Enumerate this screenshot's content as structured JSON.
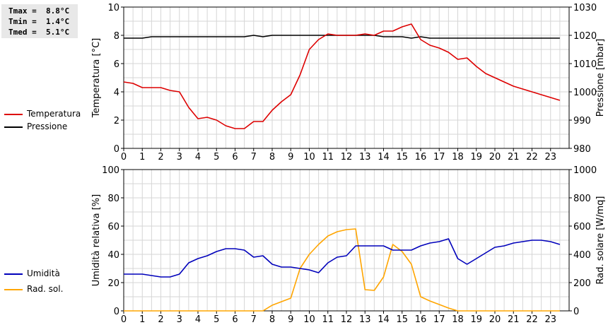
{
  "stats": {
    "tmax": "Tmax =  8.8°C",
    "tmin": "Tmin =  1.4°C",
    "tmed": "Tmed =  5.1°C"
  },
  "chart_data": [
    {
      "type": "line",
      "x": [
        0,
        0.5,
        1,
        1.5,
        2,
        2.5,
        3,
        3.5,
        4,
        4.5,
        5,
        5.5,
        6,
        6.5,
        7,
        7.5,
        8,
        8.5,
        9,
        9.5,
        10,
        10.5,
        11,
        11.5,
        12,
        12.5,
        13,
        13.5,
        14,
        14.5,
        15,
        15.5,
        16,
        16.5,
        17,
        17.5,
        18,
        18.5,
        19,
        19.5,
        20,
        20.5,
        21,
        21.5,
        22,
        22.5,
        23,
        23.5
      ],
      "xlim": [
        0,
        24
      ],
      "xticks": [
        "0",
        "1",
        "2",
        "3",
        "4",
        "5",
        "6",
        "7",
        "8",
        "9",
        "10",
        "11",
        "12",
        "13",
        "14",
        "15",
        "16",
        "17",
        "18",
        "19",
        "20",
        "21",
        "22",
        "23"
      ],
      "ylabel": "Temperatura [°C]",
      "ylim": [
        0,
        10
      ],
      "yticks": [
        "0",
        "2",
        "4",
        "6",
        "8",
        "10"
      ],
      "y2label": "Pressione [mbar]",
      "y2lim": [
        980,
        1030
      ],
      "y2ticks": [
        "980",
        "990",
        "1000",
        "1010",
        "1020",
        "1030"
      ],
      "grid": true,
      "legend_position": "left",
      "series": [
        {
          "name": "Temperatura",
          "color": "#dd0000",
          "axis": "left",
          "values": [
            4.7,
            4.6,
            4.3,
            4.3,
            4.3,
            4.1,
            4.0,
            2.9,
            2.1,
            2.2,
            2.0,
            1.6,
            1.4,
            1.4,
            1.9,
            1.9,
            2.7,
            3.3,
            3.8,
            5.2,
            7.0,
            7.7,
            8.1,
            8.0,
            8.0,
            8.0,
            8.1,
            8.0,
            8.3,
            8.3,
            8.6,
            8.8,
            7.7,
            7.3,
            7.1,
            6.8,
            6.3,
            6.4,
            5.8,
            5.3,
            5.0,
            4.7,
            4.4,
            4.2,
            4.0,
            3.8,
            3.6,
            3.4
          ]
        },
        {
          "name": "Pressione",
          "color": "#000000",
          "axis": "right",
          "values": [
            1019,
            1019,
            1019,
            1019.5,
            1019.5,
            1019.5,
            1019.5,
            1019.5,
            1019.5,
            1019.5,
            1019.5,
            1019.5,
            1019.5,
            1019.5,
            1020,
            1019.5,
            1020,
            1020,
            1020,
            1020,
            1020,
            1020,
            1020,
            1020,
            1020,
            1020,
            1020,
            1020,
            1019.5,
            1019.5,
            1019.5,
            1019,
            1019.5,
            1019,
            1019,
            1019,
            1019,
            1019,
            1019,
            1019,
            1019,
            1019,
            1019,
            1019,
            1019,
            1019,
            1019,
            1019
          ]
        }
      ]
    },
    {
      "type": "line",
      "x": [
        0,
        0.5,
        1,
        1.5,
        2,
        2.5,
        3,
        3.5,
        4,
        4.5,
        5,
        5.5,
        6,
        6.5,
        7,
        7.5,
        8,
        8.5,
        9,
        9.5,
        10,
        10.5,
        11,
        11.5,
        12,
        12.5,
        13,
        13.5,
        14,
        14.5,
        15,
        15.5,
        16,
        16.5,
        17,
        17.5,
        18,
        18.5,
        19,
        19.5,
        20,
        20.5,
        21,
        21.5,
        22,
        22.5,
        23,
        23.5
      ],
      "xlim": [
        0,
        24
      ],
      "xticks": [
        "0",
        "1",
        "2",
        "3",
        "4",
        "5",
        "6",
        "7",
        "8",
        "9",
        "10",
        "11",
        "12",
        "13",
        "14",
        "15",
        "16",
        "17",
        "18",
        "19",
        "20",
        "21",
        "22",
        "23"
      ],
      "ylabel": "Umidità relativa [%]",
      "ylim": [
        0,
        100
      ],
      "yticks": [
        "0",
        "20",
        "40",
        "60",
        "80",
        "100"
      ],
      "y2label": "Rad. solare [W/mq]",
      "y2lim": [
        0,
        1000
      ],
      "y2ticks": [
        "0",
        "200",
        "400",
        "600",
        "800",
        "1000"
      ],
      "grid": true,
      "legend_position": "left",
      "series": [
        {
          "name": "Umidità",
          "color": "#0000bb",
          "axis": "left",
          "values": [
            26,
            26,
            26,
            25,
            24,
            24,
            26,
            34,
            37,
            39,
            42,
            44,
            44,
            43,
            38,
            39,
            33,
            31,
            31,
            30,
            29,
            27,
            34,
            38,
            39,
            46,
            46,
            46,
            46,
            43,
            43,
            43,
            46,
            48,
            49,
            51,
            37,
            33,
            37,
            41,
            45,
            46,
            48,
            49,
            50,
            50,
            49,
            47
          ]
        },
        {
          "name": "Rad. sol.",
          "color": "#ffa500",
          "axis": "right",
          "values": [
            0,
            0,
            0,
            0,
            0,
            0,
            0,
            0,
            0,
            0,
            0,
            0,
            0,
            0,
            0,
            0,
            40,
            65,
            90,
            300,
            400,
            470,
            530,
            560,
            575,
            580,
            150,
            145,
            240,
            470,
            420,
            330,
            100,
            70,
            45,
            20,
            0,
            0,
            0,
            0,
            0,
            0,
            0,
            0,
            0,
            0,
            0,
            0
          ]
        }
      ]
    }
  ]
}
